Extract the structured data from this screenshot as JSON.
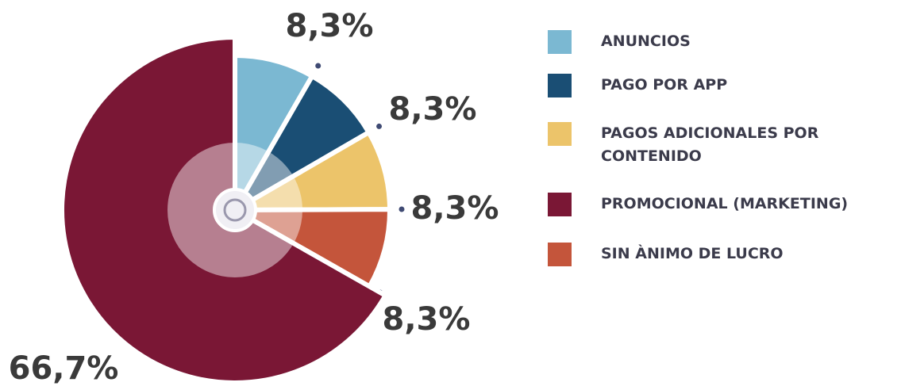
{
  "chart_data": {
    "type": "pie",
    "categories": [
      "ANUNCIOS",
      "PAGO POR APP",
      "PAGOS ADICIONALES POR CONTENIDO",
      "SIN ÀNIMO DE LUCRO",
      "PROMOCIONAL (MARKETING)"
    ],
    "values": [
      8.3,
      8.3,
      8.3,
      8.3,
      66.7
    ],
    "value_labels": [
      "8,3%",
      "8,3%",
      "8,3%",
      "8,3%",
      "66,7%"
    ],
    "colors": [
      "#7bb8d2",
      "#1a4e74",
      "#ecc46a",
      "#c4553b",
      "#7a1735"
    ]
  }
}
